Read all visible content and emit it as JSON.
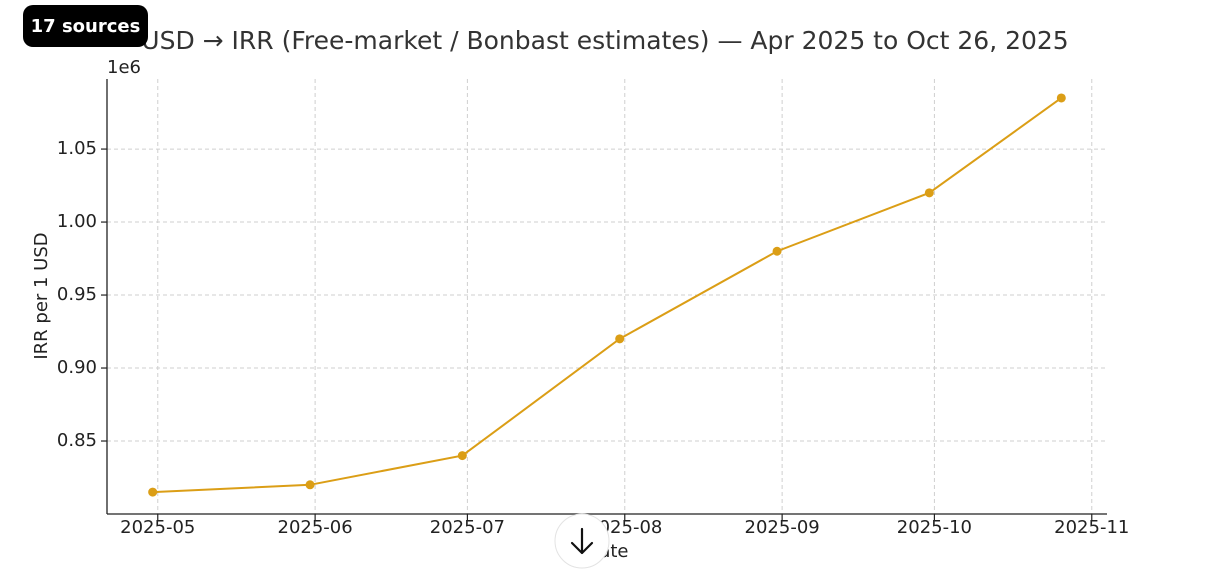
{
  "ui": {
    "sources_badge": "17 sources"
  },
  "chart_data": {
    "type": "line",
    "title": "USD → IRR (Free-market / Bonbast estimates) — Apr 2025 to Oct 26, 2025",
    "x_label": "Date",
    "y_label": "IRR per 1 USD",
    "y_offset_label": "1e6",
    "x": [
      "2025-04-30",
      "2025-05-31",
      "2025-06-30",
      "2025-07-31",
      "2025-08-31",
      "2025-09-30",
      "2025-10-26"
    ],
    "values": [
      815000,
      820000,
      840000,
      920000,
      980000,
      1020000,
      1085000
    ],
    "color": "#db9e16",
    "xlim": [
      "2025-04-21",
      "2025-11-04"
    ],
    "xticks": [
      {
        "value": "2025-05-01",
        "label": "2025-05"
      },
      {
        "value": "2025-06-01",
        "label": "2025-06"
      },
      {
        "value": "2025-07-01",
        "label": "2025-07"
      },
      {
        "value": "2025-08-01",
        "label": "2025-08"
      },
      {
        "value": "2025-09-01",
        "label": "2025-09"
      },
      {
        "value": "2025-10-01",
        "label": "2025-10"
      },
      {
        "value": "2025-11-01",
        "label": "2025-11"
      }
    ],
    "ylim": [
      800000,
      1098000
    ],
    "yticks": [
      {
        "value": 850000,
        "label": "0.85"
      },
      {
        "value": 900000,
        "label": "0.90"
      },
      {
        "value": 950000,
        "label": "0.95"
      },
      {
        "value": 1000000,
        "label": "1.00"
      },
      {
        "value": 1050000,
        "label": "1.05"
      }
    ],
    "grid": true
  }
}
